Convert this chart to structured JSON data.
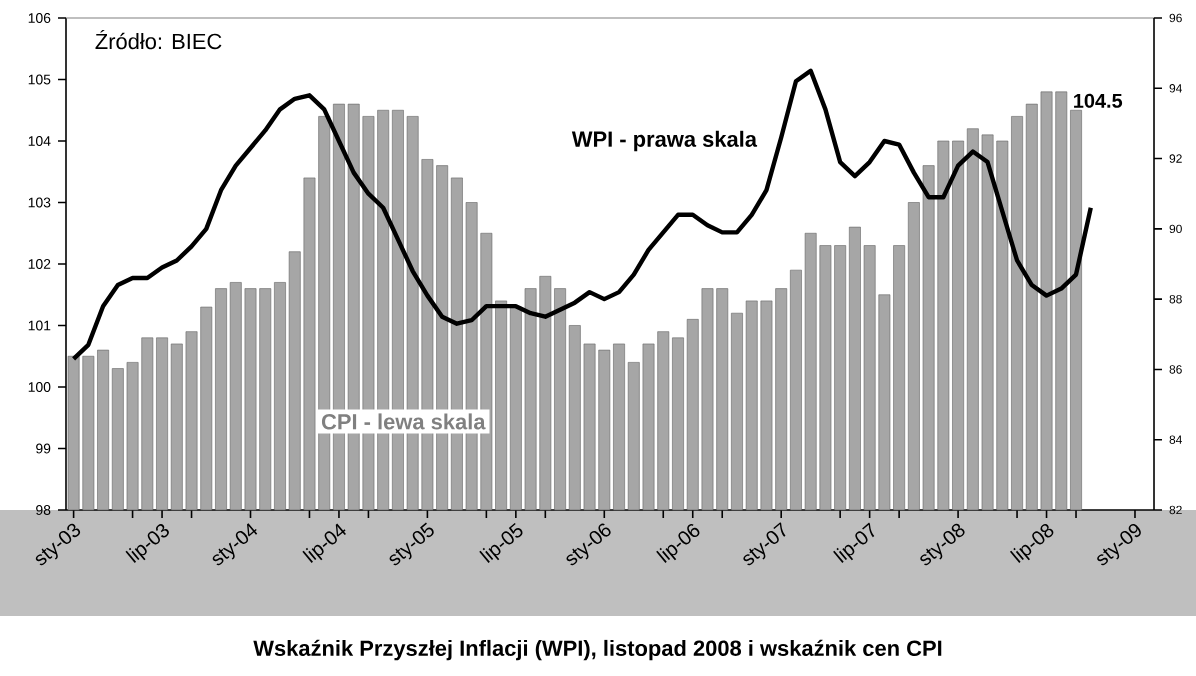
{
  "chart_data": {
    "type": "bar",
    "title": "Wskaźnik Przyszłej Inflacji (WPI), listopad 2008 i wskaźnik cen CPI",
    "annotations": [
      "Źródło: BIEC"
    ],
    "x": [
      "2003-01",
      "2003-02",
      "2003-03",
      "2003-04",
      "2003-05",
      "2003-06",
      "2003-07",
      "2003-08",
      "2003-09",
      "2003-10",
      "2003-11",
      "2003-12",
      "2004-01",
      "2004-02",
      "2004-03",
      "2004-04",
      "2004-05",
      "2004-06",
      "2004-07",
      "2004-08",
      "2004-09",
      "2004-10",
      "2004-11",
      "2004-12",
      "2005-01",
      "2005-02",
      "2005-03",
      "2005-04",
      "2005-05",
      "2005-06",
      "2005-07",
      "2005-08",
      "2005-09",
      "2005-10",
      "2005-11",
      "2005-12",
      "2006-01",
      "2006-02",
      "2006-03",
      "2006-04",
      "2006-05",
      "2006-06",
      "2006-07",
      "2006-08",
      "2006-09",
      "2006-10",
      "2006-11",
      "2006-12",
      "2007-01",
      "2007-02",
      "2007-03",
      "2007-04",
      "2007-05",
      "2007-06",
      "2007-07",
      "2007-08",
      "2007-09",
      "2007-10",
      "2007-11",
      "2007-12",
      "2008-01",
      "2008-02",
      "2008-03",
      "2008-04",
      "2008-05",
      "2008-06",
      "2008-07",
      "2008-08",
      "2008-09"
    ],
    "series": [
      {
        "name": "CPI - lewa skala",
        "color": "#a6a6a6",
        "values": [
          100.5,
          100.5,
          100.6,
          100.3,
          100.4,
          100.8,
          100.8,
          100.7,
          100.9,
          101.3,
          101.6,
          101.7,
          101.6,
          101.6,
          101.7,
          102.2,
          103.4,
          104.4,
          104.6,
          104.6,
          104.4,
          104.5,
          104.5,
          104.4,
          103.7,
          103.6,
          103.4,
          103.0,
          102.5,
          101.4,
          101.3,
          101.6,
          101.8,
          101.6,
          101.0,
          100.7,
          100.6,
          100.7,
          100.4,
          100.7,
          100.9,
          100.8,
          101.1,
          101.6,
          101.6,
          101.2,
          101.4,
          101.4,
          101.6,
          101.9,
          102.5,
          102.3,
          102.3,
          102.6,
          102.3,
          101.5,
          102.3,
          103.0,
          103.6,
          104.0,
          104.0,
          104.2,
          104.1,
          104.0,
          104.4,
          104.6,
          104.8,
          104.8,
          104.5
        ],
        "value_labels": [
          null,
          null,
          null,
          null,
          null,
          null,
          null,
          null,
          null,
          null,
          null,
          null,
          null,
          null,
          null,
          null,
          null,
          null,
          null,
          null,
          null,
          null,
          null,
          null,
          null,
          null,
          null,
          null,
          null,
          null,
          null,
          null,
          null,
          null,
          null,
          null,
          null,
          null,
          null,
          null,
          null,
          null,
          null,
          null,
          null,
          null,
          null,
          null,
          null,
          null,
          null,
          null,
          null,
          null,
          null,
          null,
          null,
          null,
          null,
          null,
          null,
          null,
          null,
          null,
          null,
          null,
          null,
          null,
          "104.5"
        ]
      },
      {
        "name": "WPI - prawa skala",
        "type": "line",
        "axis": "y2",
        "color": "#000000",
        "x": [
          "2003-01",
          "2003-02",
          "2003-03",
          "2003-04",
          "2003-05",
          "2003-06",
          "2003-07",
          "2003-08",
          "2003-09",
          "2003-10",
          "2003-11",
          "2003-12",
          "2004-01",
          "2004-02",
          "2004-03",
          "2004-04",
          "2004-05",
          "2004-06",
          "2004-07",
          "2004-08",
          "2004-09",
          "2004-10",
          "2004-11",
          "2004-12",
          "2005-01",
          "2005-02",
          "2005-03",
          "2005-04",
          "2005-05",
          "2005-06",
          "2005-07",
          "2005-08",
          "2005-09",
          "2005-10",
          "2005-11",
          "2005-12",
          "2006-01",
          "2006-02",
          "2006-03",
          "2006-04",
          "2006-05",
          "2006-06",
          "2006-07",
          "2006-08",
          "2006-09",
          "2006-10",
          "2006-11",
          "2006-12",
          "2007-01",
          "2007-02",
          "2007-03",
          "2007-04",
          "2007-05",
          "2007-06",
          "2007-07",
          "2007-08",
          "2007-09",
          "2007-10",
          "2007-11",
          "2007-12",
          "2008-01",
          "2008-02",
          "2008-03",
          "2008-04",
          "2008-05",
          "2008-06",
          "2008-07",
          "2008-08",
          "2008-09",
          "2008-10"
        ],
        "values": [
          86.3,
          86.7,
          87.8,
          88.4,
          88.6,
          88.6,
          88.9,
          89.1,
          89.5,
          90.0,
          91.1,
          91.8,
          92.3,
          92.8,
          93.4,
          93.7,
          93.8,
          93.4,
          92.5,
          91.6,
          91.0,
          90.6,
          89.7,
          88.8,
          88.1,
          87.5,
          87.3,
          87.4,
          87.8,
          87.8,
          87.8,
          87.6,
          87.5,
          87.7,
          87.9,
          88.2,
          88.0,
          88.2,
          88.7,
          89.4,
          89.9,
          90.4,
          90.4,
          90.1,
          89.9,
          89.9,
          90.4,
          91.1,
          92.6,
          94.2,
          94.5,
          93.4,
          91.9,
          91.5,
          91.9,
          92.5,
          92.4,
          91.6,
          90.9,
          90.9,
          91.8,
          92.2,
          91.9,
          90.5,
          89.1,
          88.4,
          88.1,
          88.3,
          88.7,
          90.6
        ]
      }
    ],
    "xlim": [
      "2002-12-16",
      "2009-02-10"
    ],
    "xticks": [
      {
        "value": "2003-01-01",
        "label": "sty-03"
      },
      {
        "value": "2003-05-01",
        "label": null
      },
      {
        "value": "2003-07-01",
        "label": "lip-03"
      },
      {
        "value": "2003-09-01",
        "label": null
      },
      {
        "value": "2004-01-01",
        "label": "sty-04"
      },
      {
        "value": "2004-05-01",
        "label": null
      },
      {
        "value": "2004-07-01",
        "label": "lip-04"
      },
      {
        "value": "2004-09-01",
        "label": null
      },
      {
        "value": "2005-01-01",
        "label": "sty-05"
      },
      {
        "value": "2005-05-01",
        "label": null
      },
      {
        "value": "2005-07-01",
        "label": "lip-05"
      },
      {
        "value": "2005-09-01",
        "label": null
      },
      {
        "value": "2006-01-01",
        "label": "sty-06"
      },
      {
        "value": "2006-05-01",
        "label": null
      },
      {
        "value": "2006-07-01",
        "label": "lip-06"
      },
      {
        "value": "2006-09-01",
        "label": null
      },
      {
        "value": "2007-01-01",
        "label": "sty-07"
      },
      {
        "value": "2007-05-01",
        "label": null
      },
      {
        "value": "2007-07-01",
        "label": "lip-07"
      },
      {
        "value": "2007-09-01",
        "label": null
      },
      {
        "value": "2008-01-01",
        "label": "sty-08"
      },
      {
        "value": "2008-05-01",
        "label": null
      },
      {
        "value": "2008-07-01",
        "label": "lip-08"
      },
      {
        "value": "2008-09-01",
        "label": null
      },
      {
        "value": "2009-01-01",
        "label": "sty-09"
      }
    ],
    "ylim": [
      98,
      106
    ],
    "yticks": [
      98,
      99,
      100,
      101,
      102,
      103,
      104,
      105,
      106
    ],
    "y2lim": [
      82,
      96
    ],
    "y2ticks": [
      82,
      84,
      86,
      88,
      90,
      92,
      94,
      96
    ]
  }
}
